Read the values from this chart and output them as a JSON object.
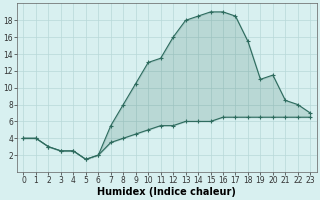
{
  "xlabel": "Humidex (Indice chaleur)",
  "x_upper": [
    0,
    1,
    2,
    3,
    4,
    5,
    6,
    7,
    8,
    9,
    10,
    11,
    12,
    13,
    14,
    15,
    16,
    17,
    18,
    19,
    20,
    21,
    22,
    23
  ],
  "y_upper": [
    4,
    4,
    3,
    2.5,
    2.5,
    1.5,
    2,
    5.5,
    8,
    10.5,
    13,
    13.5,
    16,
    18,
    18.5,
    19,
    19,
    18.5,
    15.5,
    11,
    11.5,
    8.5,
    8,
    7
  ],
  "x_lower": [
    0,
    1,
    2,
    3,
    4,
    5,
    6,
    7,
    8,
    9,
    10,
    11,
    12,
    13,
    14,
    15,
    16,
    17,
    18,
    19,
    20,
    21,
    22,
    23
  ],
  "y_lower": [
    4,
    4,
    3,
    2.5,
    2.5,
    1.5,
    2,
    3.5,
    4,
    4.5,
    5,
    5.5,
    5.5,
    6,
    6,
    6,
    6.5,
    6.5,
    6.5,
    6.5,
    6.5,
    6.5,
    6.5,
    6.5
  ],
  "line_color": "#2d6b5e",
  "fill_color": "#2d6b5e",
  "bg_color": "#d8f0f0",
  "grid_color": "#b8d8d8",
  "ylim": [
    0,
    20
  ],
  "xlim": [
    -0.5,
    23.5
  ],
  "yticks": [
    2,
    4,
    6,
    8,
    10,
    12,
    14,
    16,
    18
  ],
  "xticks": [
    0,
    1,
    2,
    3,
    4,
    5,
    6,
    7,
    8,
    9,
    10,
    11,
    12,
    13,
    14,
    15,
    16,
    17,
    18,
    19,
    20,
    21,
    22,
    23
  ],
  "tick_fontsize": 5.5,
  "xlabel_fontsize": 7
}
